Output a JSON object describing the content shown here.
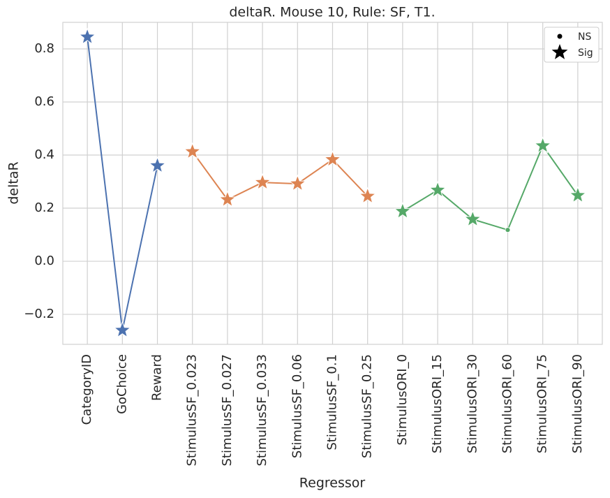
{
  "chart_data": {
    "type": "line",
    "title": "deltaR. Mouse 10, Rule: SF, T1.",
    "x_label": "Regressor",
    "y_label": "deltaR",
    "categories": [
      "CategoryID",
      "GoChoice",
      "Reward",
      "StimulusSF_0.023",
      "StimulusSF_0.027",
      "StimulusSF_0.033",
      "StimulusSF_0.06",
      "StimulusSF_0.1",
      "StimulusSF_0.25",
      "StimulusORI_0",
      "StimulusORI_15",
      "StimulusORI_30",
      "StimulusORI_60",
      "StimulusORI_75",
      "StimulusORI_90"
    ],
    "series": [
      {
        "color": "#4c72b0",
        "values": [
          0.845,
          -0.26,
          0.36,
          null,
          null,
          null,
          null,
          null,
          null,
          null,
          null,
          null,
          null,
          null,
          null
        ],
        "markers": [
          "Sig",
          "Sig",
          "Sig",
          null,
          null,
          null,
          null,
          null,
          null,
          null,
          null,
          null,
          null,
          null,
          null
        ]
      },
      {
        "color": "#dd8452",
        "values": [
          null,
          null,
          null,
          0.413,
          0.232,
          0.297,
          0.292,
          0.383,
          0.245,
          null,
          null,
          null,
          null,
          null,
          null
        ],
        "markers": [
          null,
          null,
          null,
          "Sig",
          "Sig",
          "Sig",
          "Sig",
          "Sig",
          "Sig",
          null,
          null,
          null,
          null,
          null,
          null
        ]
      },
      {
        "color": "#55a868",
        "values": [
          null,
          null,
          null,
          null,
          null,
          null,
          null,
          null,
          null,
          0.188,
          0.268,
          0.158,
          0.118,
          0.435,
          0.248
        ],
        "markers": [
          null,
          null,
          null,
          null,
          null,
          null,
          null,
          null,
          null,
          "Sig",
          "Sig",
          "Sig",
          "NS",
          "Sig",
          "Sig"
        ]
      }
    ],
    "legend": [
      "NS",
      "Sig"
    ],
    "legend_position": "upper right",
    "ylim": [
      -0.313,
      0.9
    ],
    "yticks": [
      {
        "value": -0.2,
        "label": "−0.2"
      },
      {
        "value": 0,
        "label": "0.0"
      },
      0.2,
      0.4,
      0.6,
      0.8
    ],
    "grid": true
  }
}
